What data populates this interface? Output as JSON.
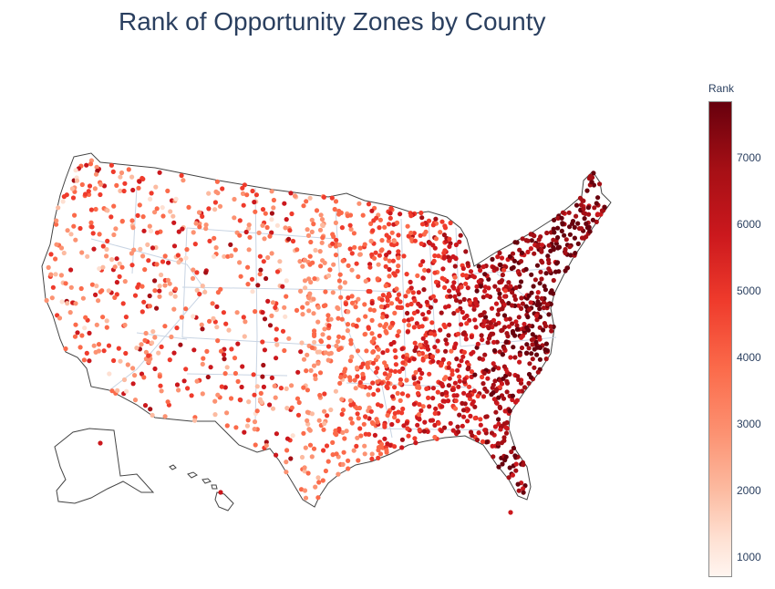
{
  "title": "Rank of Opportunity Zones by County",
  "colorbar": {
    "title": "Rank",
    "min": 700,
    "max": 7850,
    "ticks": [
      {
        "value": 7000,
        "label": "7000"
      },
      {
        "value": 6000,
        "label": "6000"
      },
      {
        "value": 5000,
        "label": "5000"
      },
      {
        "value": 4000,
        "label": "4000"
      },
      {
        "value": 3000,
        "label": "3000"
      },
      {
        "value": 2000,
        "label": "2000"
      },
      {
        "value": 1000,
        "label": "1000"
      }
    ],
    "colorscale": [
      "#fff5f0",
      "#fee0d2",
      "#fcbba1",
      "#fc9272",
      "#fb6a4a",
      "#ef3b2c",
      "#cb181d",
      "#a50f15",
      "#67000d"
    ]
  },
  "map": {
    "projection": "albers-usa",
    "state_border_color": "#c8d4e3",
    "coast_color": "#444444",
    "marker_count_approx": 2000
  }
}
